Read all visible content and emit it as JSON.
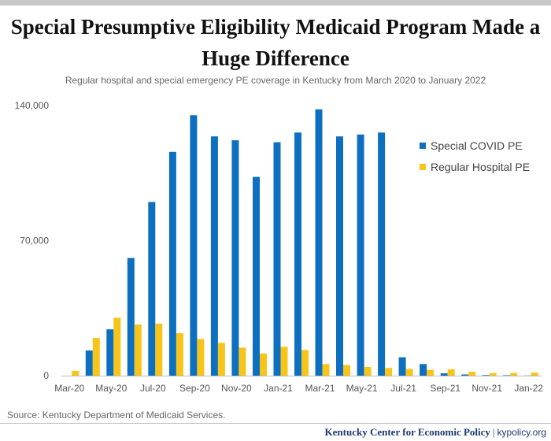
{
  "title": "Special Presumptive Eligibility Medicaid Program Made a Huge Difference",
  "subtitle": "Regular hospital and special emergency PE coverage in Kentucky from March 2020 to January 2022",
  "source": "Source: Kentucky Department of Medicaid Services.",
  "footer": {
    "org": "Kentucky Center for Economic Policy",
    "separator": "|",
    "site": "kypolicy.org"
  },
  "colors": {
    "covid": "#0c6fbf",
    "regular": "#f7c51a",
    "axis": "#bbbbbb",
    "text": "#555555"
  },
  "chart_data": {
    "type": "bar",
    "categories": [
      "Mar-20",
      "Apr-20",
      "May-20",
      "Jun-20",
      "Jul-20",
      "Aug-20",
      "Sep-20",
      "Oct-20",
      "Nov-20",
      "Dec-20",
      "Jan-21",
      "Feb-21",
      "Mar-21",
      "Apr-21",
      "May-21",
      "Jun-21",
      "Jul-21",
      "Aug-21",
      "Sep-21",
      "Oct-21",
      "Nov-21",
      "Dec-21",
      "Jan-22"
    ],
    "tick_labels": [
      "Mar-20",
      "May-20",
      "Jul-20",
      "Sep-20",
      "Nov-20",
      "Jan-21",
      "Mar-21",
      "May-21",
      "Jul-21",
      "Sep-21",
      "Nov-21",
      "Jan-22"
    ],
    "series": [
      {
        "name": "Special COVID PE",
        "color": "#0c6fbf",
        "values": [
          0,
          13000,
          24000,
          61000,
          90000,
          116000,
          135000,
          124000,
          122000,
          103000,
          121000,
          126000,
          138000,
          124000,
          125000,
          126000,
          9500,
          6000,
          1200,
          600,
          300,
          200,
          100
        ]
      },
      {
        "name": "Regular Hospital PE",
        "color": "#f7c51a",
        "values": [
          2500,
          19500,
          30000,
          26500,
          27000,
          22000,
          19000,
          17000,
          14500,
          11500,
          15000,
          13300,
          6000,
          5500,
          4500,
          4000,
          3500,
          3000,
          3300,
          2000,
          1300,
          1400,
          1600
        ]
      }
    ],
    "ylim": [
      0,
      140000
    ],
    "yticks": [
      0,
      70000,
      140000
    ],
    "ytick_labels": [
      "0",
      "70,000",
      "140,000"
    ],
    "legend_position": "right",
    "grid": false
  }
}
